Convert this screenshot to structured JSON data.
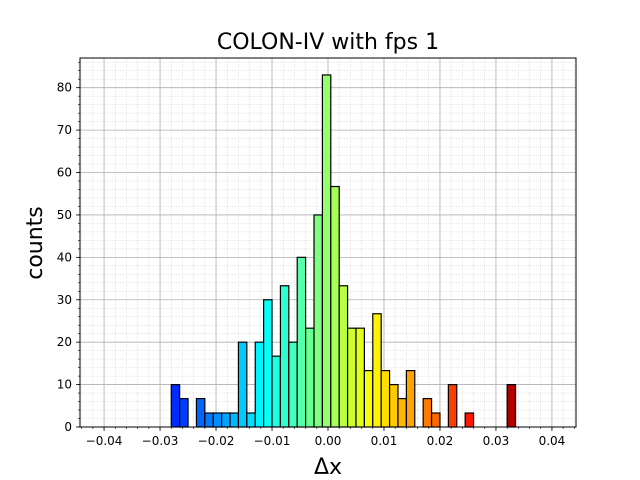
{
  "chart_data": {
    "type": "bar",
    "title": "COLON-IV with fps 1",
    "xlabel": "Δx",
    "ylabel": "counts",
    "xlim": [
      -0.0443,
      0.0443
    ],
    "ylim": [
      0,
      87
    ],
    "bin_width": 0.0015,
    "grid": true,
    "minor_grid": true,
    "colormap": "jet",
    "x_ticks": [
      -0.04,
      -0.03,
      -0.02,
      -0.01,
      0.0,
      0.01,
      0.02,
      0.03,
      0.04
    ],
    "x_tick_labels": [
      "−0.04",
      "−0.03",
      "−0.02",
      "−0.01",
      "0.00",
      "0.01",
      "0.02",
      "0.03",
      "0.04"
    ],
    "y_ticks": [
      0,
      10,
      20,
      30,
      40,
      50,
      60,
      70,
      80
    ],
    "y_tick_labels": [
      "0",
      "10",
      "20",
      "30",
      "40",
      "50",
      "60",
      "70",
      "80"
    ],
    "bins": [
      {
        "x": -0.04,
        "count": 0
      },
      {
        "x": -0.0385,
        "count": 0
      },
      {
        "x": -0.037,
        "count": 0
      },
      {
        "x": -0.0355,
        "count": 0
      },
      {
        "x": -0.034,
        "count": 0
      },
      {
        "x": -0.0325,
        "count": 0
      },
      {
        "x": -0.031,
        "count": 0
      },
      {
        "x": -0.0295,
        "count": 0
      },
      {
        "x": -0.028,
        "count": 10
      },
      {
        "x": -0.0265,
        "count": 6.7
      },
      {
        "x": -0.025,
        "count": 0
      },
      {
        "x": -0.0235,
        "count": 6.7
      },
      {
        "x": -0.022,
        "count": 3.3
      },
      {
        "x": -0.0205,
        "count": 3.3
      },
      {
        "x": -0.019,
        "count": 3.3
      },
      {
        "x": -0.0175,
        "count": 3.3
      },
      {
        "x": -0.016,
        "count": 20
      },
      {
        "x": -0.0145,
        "count": 3.3
      },
      {
        "x": -0.013,
        "count": 20
      },
      {
        "x": -0.0115,
        "count": 30
      },
      {
        "x": -0.01,
        "count": 16.7
      },
      {
        "x": -0.0085,
        "count": 33.3
      },
      {
        "x": -0.007,
        "count": 20
      },
      {
        "x": -0.0055,
        "count": 40
      },
      {
        "x": -0.004,
        "count": 23.3
      },
      {
        "x": -0.0025,
        "count": 50
      },
      {
        "x": -0.001,
        "count": 83
      },
      {
        "x": 0.0005,
        "count": 56.7
      },
      {
        "x": 0.002,
        "count": 33.3
      },
      {
        "x": 0.0035,
        "count": 23.3
      },
      {
        "x": 0.005,
        "count": 23.3
      },
      {
        "x": 0.0065,
        "count": 13.3
      },
      {
        "x": 0.008,
        "count": 26.7
      },
      {
        "x": 0.0095,
        "count": 13.3
      },
      {
        "x": 0.011,
        "count": 10
      },
      {
        "x": 0.0125,
        "count": 6.7
      },
      {
        "x": 0.014,
        "count": 13.3
      },
      {
        "x": 0.0155,
        "count": 0
      },
      {
        "x": 0.017,
        "count": 6.7
      },
      {
        "x": 0.0185,
        "count": 3.3
      },
      {
        "x": 0.02,
        "count": 0
      },
      {
        "x": 0.0215,
        "count": 10
      },
      {
        "x": 0.023,
        "count": 0
      },
      {
        "x": 0.0245,
        "count": 3.3
      },
      {
        "x": 0.026,
        "count": 0
      },
      {
        "x": 0.0275,
        "count": 0
      },
      {
        "x": 0.029,
        "count": 0
      },
      {
        "x": 0.0305,
        "count": 0
      },
      {
        "x": 0.032,
        "count": 10
      },
      {
        "x": 0.0335,
        "count": 0
      },
      {
        "x": 0.035,
        "count": 0
      }
    ]
  }
}
